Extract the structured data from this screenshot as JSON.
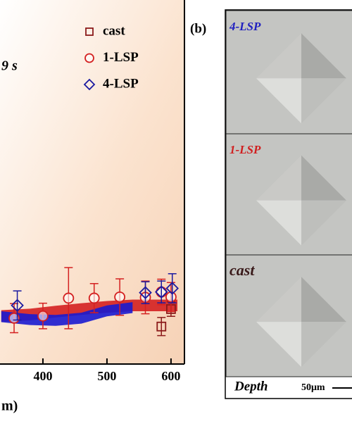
{
  "chart_data": {
    "type": "scatter",
    "annotation": "9 s",
    "x_label": "m)",
    "xlim": [
      333,
      621
    ],
    "xticks": [
      400,
      500,
      600
    ],
    "ylim": [
      0,
      100
    ],
    "legend": "top-right",
    "series": [
      {
        "name": "cast",
        "color": "#8b1a1a",
        "marker": "square",
        "x": [
          585,
          600
        ],
        "values": [
          10.3,
          15.1
        ],
        "errors": [
          2.5,
          2.0
        ]
      },
      {
        "name": "1-LSP",
        "color": "#d42020",
        "marker": "circle",
        "x": [
          355,
          400,
          440,
          480,
          520,
          560,
          585,
          600
        ],
        "values": [
          12.6,
          13.2,
          18.1,
          18.1,
          18.4,
          18.3,
          19.8,
          18.4
        ],
        "errors": [
          4.0,
          3.5,
          8.4,
          4.0,
          5.0,
          4.5,
          3.5,
          4.0
        ]
      },
      {
        "name": "4-LSP",
        "color": "#1a1aa0",
        "marker": "diamond",
        "x": [
          360,
          560,
          585,
          602
        ],
        "values": [
          16.1,
          19.6,
          19.8,
          20.8
        ],
        "errors": [
          4.0,
          3.0,
          3.0,
          4.0
        ]
      }
    ],
    "bands": [
      {
        "color": "#d42020",
        "x": [
          335,
          380,
          420,
          460,
          500,
          540,
          580,
          610
        ],
        "lower": [
          11.6,
          12.0,
          12.8,
          13.5,
          14.1,
          14.5,
          14.5,
          14.5
        ],
        "upper": [
          14.8,
          15.2,
          16.0,
          16.7,
          17.3,
          17.7,
          17.7,
          17.7
        ]
      },
      {
        "color": "#1a1ad0",
        "x": [
          335,
          380,
          420,
          460,
          500,
          540
        ],
        "lower": [
          11.5,
          10.7,
          10.5,
          11.1,
          13.1,
          14.0
        ],
        "upper": [
          14.5,
          13.7,
          13.5,
          14.1,
          16.1,
          17.0
        ]
      }
    ]
  },
  "panel_b": {
    "label": "(b)",
    "tiles": [
      "4-LSP",
      "1-LSP",
      "cast"
    ],
    "tile_colors": [
      "#2020c0",
      "#d02020",
      "#3a1a1a"
    ],
    "depth_label": "Depth",
    "scale": "50μm"
  }
}
